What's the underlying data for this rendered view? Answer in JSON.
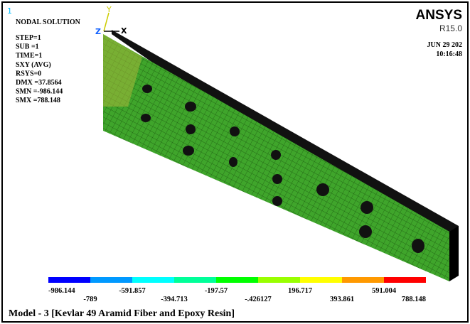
{
  "window_number": "1",
  "info": {
    "title": "NODAL SOLUTION",
    "lines": [
      "STEP=1",
      "SUB =1",
      "TIME=1",
      "SXY      (AVG)",
      "RSYS=0",
      "DMX =37.8564",
      "SMN =-986.144",
      "SMX =788.148"
    ]
  },
  "logo": {
    "brand": "ANSYS",
    "version": "R15.0",
    "date": "JUN 29 202",
    "time": "10:16:48"
  },
  "axes": {
    "y": "Y",
    "z": "Z",
    "x": "X"
  },
  "legend": {
    "colors": [
      "#0000ff",
      "#0099ff",
      "#00ffff",
      "#00ff99",
      "#00ff00",
      "#99ff00",
      "#ffff00",
      "#ff9900",
      "#ff0000"
    ],
    "labels": [
      "-986.144",
      "-789",
      "-591.857",
      "-394.713",
      "-197.57",
      "-.426127",
      "196.717",
      "393.861",
      "591.004",
      "788.148"
    ]
  },
  "caption": "Model - 3 [Kevlar 49 Aramid Fiber and Epoxy Resin]"
}
